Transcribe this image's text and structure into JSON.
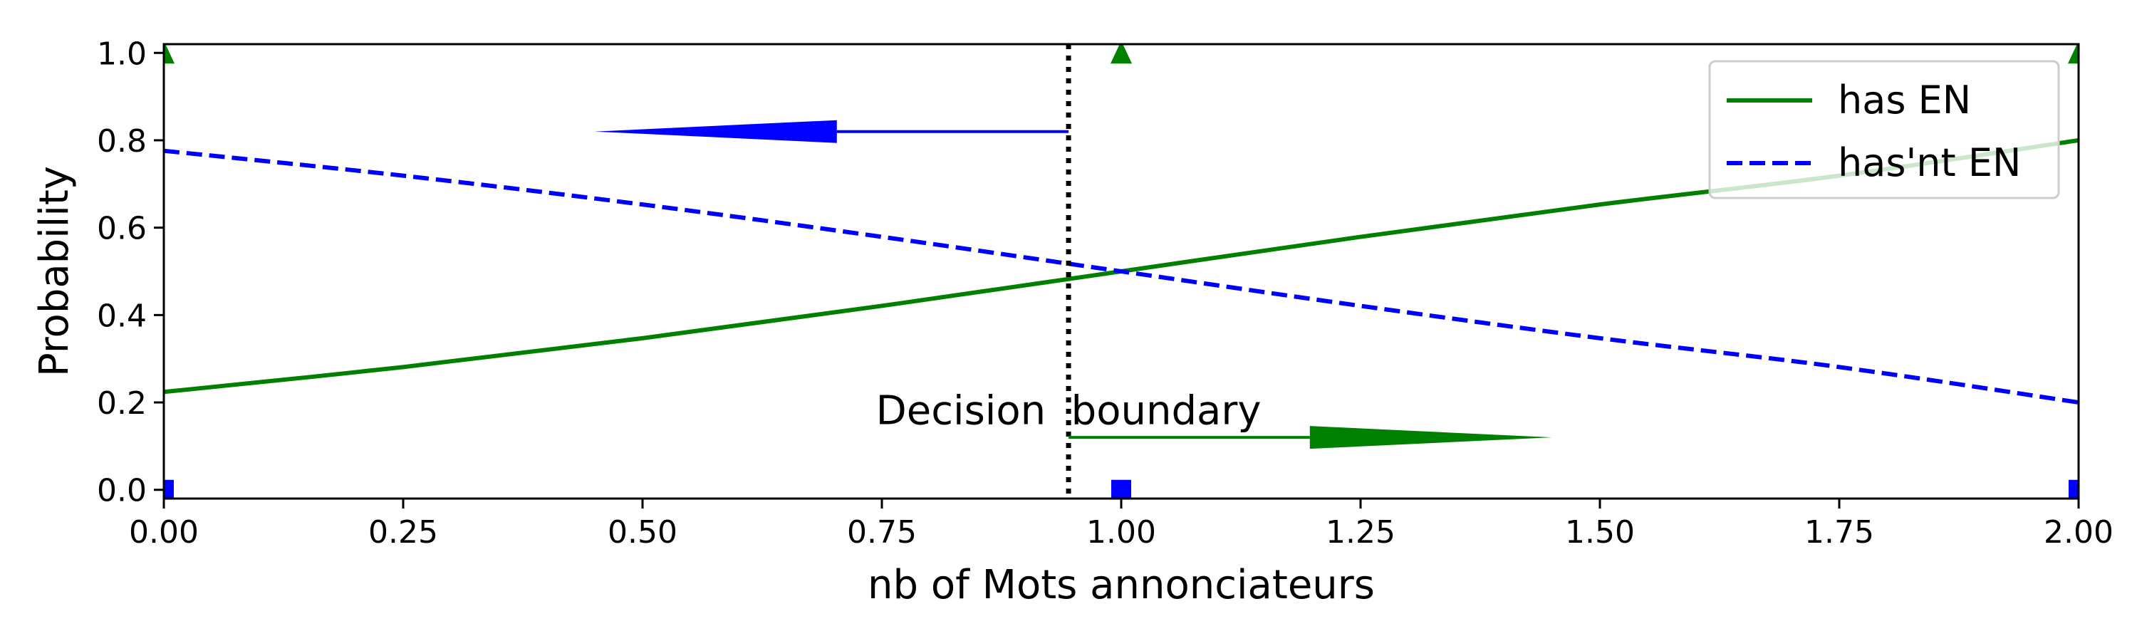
{
  "chart_data": {
    "type": "line",
    "title": "",
    "xlabel": "nb of Mots annonciateurs",
    "ylabel": "Probability",
    "xlim": [
      0.0,
      2.0
    ],
    "ylim": [
      -0.02,
      1.02
    ],
    "x_ticks": [
      "0.00",
      "0.25",
      "0.50",
      "0.75",
      "1.00",
      "1.25",
      "1.50",
      "1.75",
      "2.00"
    ],
    "y_ticks": [
      "0.0",
      "0.2",
      "0.4",
      "0.6",
      "0.8",
      "1.0"
    ],
    "grid": false,
    "legend_position": "top-right",
    "series": [
      {
        "name": "has EN",
        "color": "#008000",
        "style": "solid",
        "x": [
          0.0,
          0.25,
          0.5,
          0.75,
          1.0,
          1.25,
          1.5,
          1.75,
          2.0
        ],
        "y": [
          0.224,
          0.281,
          0.347,
          0.421,
          0.5,
          0.579,
          0.653,
          0.719,
          0.8
        ]
      },
      {
        "name": "has'nt EN",
        "color": "#0000ff",
        "style": "dashed",
        "x": [
          0.0,
          0.25,
          0.5,
          0.75,
          1.0,
          1.25,
          1.5,
          1.75,
          2.0
        ],
        "y": [
          0.776,
          0.719,
          0.653,
          0.579,
          0.5,
          0.421,
          0.347,
          0.281,
          0.2
        ]
      }
    ],
    "positive_samples": {
      "marker": "triangle",
      "color": "#008000",
      "x": [
        0.0,
        1.0,
        2.0
      ],
      "y": [
        1.0,
        1.0,
        1.0
      ]
    },
    "negative_samples": {
      "marker": "square",
      "color": "#0000ff",
      "x": [
        0.0,
        1.0,
        2.0
      ],
      "y": [
        0.0,
        0.0,
        0.0
      ]
    },
    "decision_boundary": {
      "x": 0.945,
      "label": "Decision  boundary",
      "label_y": 0.15
    },
    "arrows": [
      {
        "color": "#0000ff",
        "x_start": 0.945,
        "x_end": 0.45,
        "y": 0.82
      },
      {
        "color": "#008000",
        "x_start": 0.945,
        "x_end": 1.45,
        "y": 0.12
      }
    ]
  }
}
